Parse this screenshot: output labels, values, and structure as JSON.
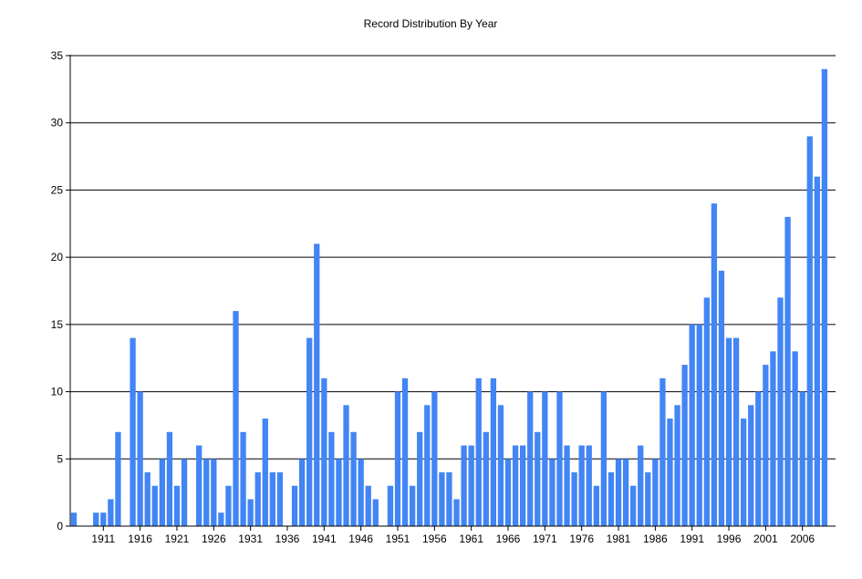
{
  "chart_data": {
    "type": "bar",
    "title": "Record Distribution By Year",
    "xlabel": "",
    "ylabel": "",
    "ylim": [
      0,
      35
    ],
    "yticks": [
      0,
      5,
      10,
      15,
      20,
      25,
      30,
      35
    ],
    "grid": "horizontal",
    "bar_color": "#4285F4",
    "x_tick_labels": [
      "1911",
      "1916",
      "1921",
      "1926",
      "1931",
      "1936",
      "1941",
      "1946",
      "1951",
      "1956",
      "1961",
      "1966",
      "1971",
      "1976",
      "1981",
      "1986",
      "1991",
      "1996",
      "2001",
      "2006"
    ],
    "categories": [
      1907,
      1908,
      1909,
      1910,
      1911,
      1912,
      1913,
      1914,
      1915,
      1916,
      1917,
      1918,
      1919,
      1920,
      1921,
      1922,
      1923,
      1924,
      1925,
      1926,
      1927,
      1928,
      1929,
      1930,
      1931,
      1932,
      1933,
      1934,
      1935,
      1936,
      1937,
      1938,
      1939,
      1940,
      1941,
      1942,
      1943,
      1944,
      1945,
      1946,
      1947,
      1948,
      1949,
      1950,
      1951,
      1952,
      1953,
      1954,
      1955,
      1956,
      1957,
      1958,
      1959,
      1960,
      1961,
      1962,
      1963,
      1964,
      1965,
      1966,
      1967,
      1968,
      1969,
      1970,
      1971,
      1972,
      1973,
      1974,
      1975,
      1976,
      1977,
      1978,
      1979,
      1980,
      1981,
      1982,
      1983,
      1984,
      1985,
      1986,
      1987,
      1988,
      1989,
      1990,
      1991,
      1992,
      1993,
      1994,
      1995,
      1996,
      1997,
      1998,
      1999,
      2000,
      2001,
      2002,
      2003,
      2004,
      2005,
      2006,
      2007,
      2008,
      2009,
      2010
    ],
    "values": [
      1,
      0,
      0,
      1,
      1,
      2,
      7,
      0,
      14,
      10,
      4,
      3,
      5,
      7,
      3,
      5,
      0,
      6,
      5,
      5,
      1,
      3,
      16,
      7,
      2,
      4,
      8,
      4,
      4,
      0,
      3,
      5,
      14,
      21,
      11,
      7,
      5,
      9,
      7,
      5,
      3,
      2,
      0,
      3,
      10,
      11,
      3,
      7,
      9,
      10,
      4,
      4,
      2,
      6,
      6,
      11,
      7,
      11,
      9,
      5,
      6,
      6,
      10,
      7,
      10,
      5,
      10,
      6,
      4,
      6,
      6,
      3,
      10,
      4,
      5,
      5,
      3,
      6,
      4,
      5,
      11,
      8,
      9,
      12,
      15,
      15,
      17,
      24,
      19,
      14,
      14,
      8,
      9,
      10,
      12,
      13,
      17,
      23,
      13,
      10,
      29,
      26,
      34,
      0
    ]
  }
}
